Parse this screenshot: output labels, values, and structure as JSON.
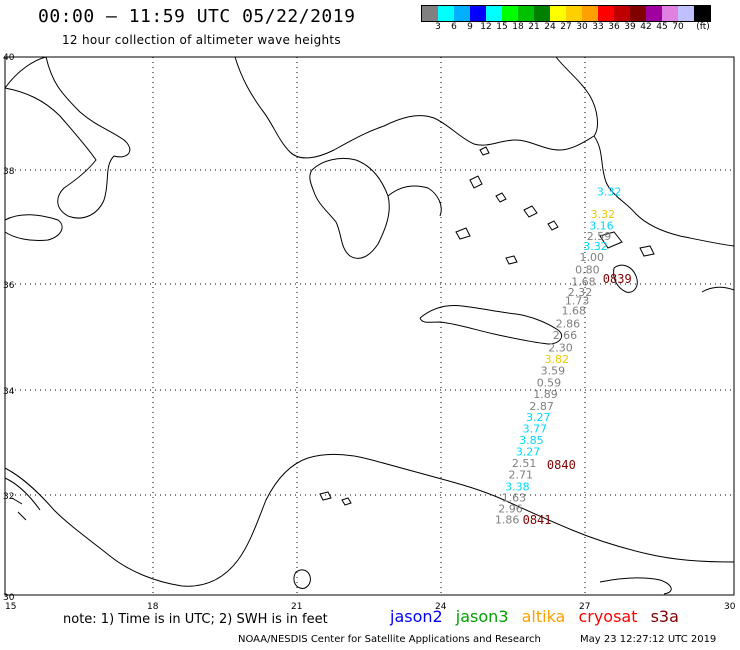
{
  "header": {
    "title": "00:00 – 11:59 UTC 05/22/2019",
    "subtitle": "12 hour collection of altimeter wave heights"
  },
  "legend": {
    "unit": "(ft)",
    "swatches": [
      "#808080",
      "#00ffff",
      "#00b0ff",
      "#0000ff",
      "#00ffff",
      "#00ff00",
      "#00c000",
      "#008000",
      "#ffff00",
      "#ffd000",
      "#ffa000",
      "#ff0000",
      "#c00000",
      "#800000",
      "#a000a0",
      "#e080e0",
      "#c0c0ff",
      "#000000"
    ],
    "labels": [
      "3",
      "6",
      "9",
      "12",
      "15",
      "18",
      "21",
      "24",
      "27",
      "30",
      "33",
      "36",
      "39",
      "42",
      "45",
      "70"
    ]
  },
  "map": {
    "lat_labels": [
      "40",
      "38",
      "36",
      "34",
      "32",
      "30"
    ],
    "lon_labels": [
      "15",
      "18",
      "21",
      "24",
      "27",
      "30"
    ]
  },
  "chart_data": {
    "type": "scatter",
    "title": "00:00 – 11:59 UTC 05/22/2019",
    "subtitle": "12 hour collection of altimeter wave heights",
    "lon_range": [
      15,
      30
    ],
    "lat_range": [
      30,
      40
    ],
    "points": [
      {
        "label": "3.32",
        "color": "#00d8ff",
        "lon": 27.18,
        "lat": 37.55
      },
      {
        "label": "3.32",
        "color": "#f0c800",
        "lon": 27.05,
        "lat": 37.16
      },
      {
        "label": "3.16",
        "color": "#00d8ff",
        "lon": 27.02,
        "lat": 36.96
      },
      {
        "label": "2.59",
        "color": "#808080",
        "lon": 26.97,
        "lat": 36.77
      },
      {
        "label": "3.32",
        "color": "#00d8ff",
        "lon": 26.9,
        "lat": 36.6
      },
      {
        "label": "1.00",
        "color": "#808080",
        "lon": 26.82,
        "lat": 36.4
      },
      {
        "label": "0.80",
        "color": "#808080",
        "lon": 26.73,
        "lat": 36.18
      },
      {
        "label": "1.68",
        "color": "#808080",
        "lon": 26.65,
        "lat": 35.97
      },
      {
        "label": "2.32",
        "color": "#808080",
        "lon": 26.58,
        "lat": 35.77
      },
      {
        "label": "1.73",
        "color": "#808080",
        "lon": 26.52,
        "lat": 35.61
      },
      {
        "label": "1.68",
        "color": "#808080",
        "lon": 26.45,
        "lat": 35.42
      },
      {
        "label": "2.86",
        "color": "#808080",
        "lon": 26.33,
        "lat": 35.18
      },
      {
        "label": "2.66",
        "color": "#808080",
        "lon": 26.27,
        "lat": 34.96
      },
      {
        "label": "2.30",
        "color": "#808080",
        "lon": 26.18,
        "lat": 34.73
      },
      {
        "label": "3.82",
        "color": "#f0c800",
        "lon": 26.1,
        "lat": 34.51
      },
      {
        "label": "3.59",
        "color": "#808080",
        "lon": 26.02,
        "lat": 34.29
      },
      {
        "label": "0.59",
        "color": "#808080",
        "lon": 25.94,
        "lat": 34.07
      },
      {
        "label": "1.89",
        "color": "#808080",
        "lon": 25.87,
        "lat": 33.85
      },
      {
        "label": "2.87",
        "color": "#808080",
        "lon": 25.79,
        "lat": 33.62
      },
      {
        "label": "3.27",
        "color": "#00d8ff",
        "lon": 25.72,
        "lat": 33.41
      },
      {
        "label": "3.77",
        "color": "#00d8ff",
        "lon": 25.65,
        "lat": 33.19
      },
      {
        "label": "3.85",
        "color": "#00d8ff",
        "lon": 25.58,
        "lat": 32.97
      },
      {
        "label": "3.27",
        "color": "#00d8ff",
        "lon": 25.51,
        "lat": 32.75
      },
      {
        "label": "2.51",
        "color": "#808080",
        "lon": 25.43,
        "lat": 32.53
      },
      {
        "label": "2.71",
        "color": "#808080",
        "lon": 25.36,
        "lat": 32.31
      },
      {
        "label": "3.38",
        "color": "#00d8ff",
        "lon": 25.29,
        "lat": 32.09
      },
      {
        "label": "1.63",
        "color": "#808080",
        "lon": 25.22,
        "lat": 31.87
      },
      {
        "label": "2.96",
        "color": "#808080",
        "lon": 25.15,
        "lat": 31.65
      },
      {
        "label": "1.86",
        "color": "#808080",
        "lon": 25.08,
        "lat": 31.43
      }
    ],
    "time_labels": [
      {
        "label": "0839",
        "color": "#800000",
        "lon": 27.3,
        "lat": 36.02
      },
      {
        "label": "0840",
        "color": "#800000",
        "lon": 26.15,
        "lat": 32.5
      },
      {
        "label": "0841",
        "color": "#800000",
        "lon": 25.65,
        "lat": 31.42
      }
    ]
  },
  "footer": {
    "note": "note:  1) Time is in UTC;  2) SWH is in feet",
    "satellites": [
      {
        "name": "jason2",
        "color": "#0000ff"
      },
      {
        "name": "jason3",
        "color": "#00a000"
      },
      {
        "name": "altika",
        "color": "#ffa000"
      },
      {
        "name": "cryosat",
        "color": "#ff0000"
      },
      {
        "name": "s3a",
        "color": "#800000"
      }
    ],
    "credit": "NOAA/NESDIS Center for Satellite Applications and Research",
    "timestamp": "May 23 12:27:12 UTC 2019"
  }
}
